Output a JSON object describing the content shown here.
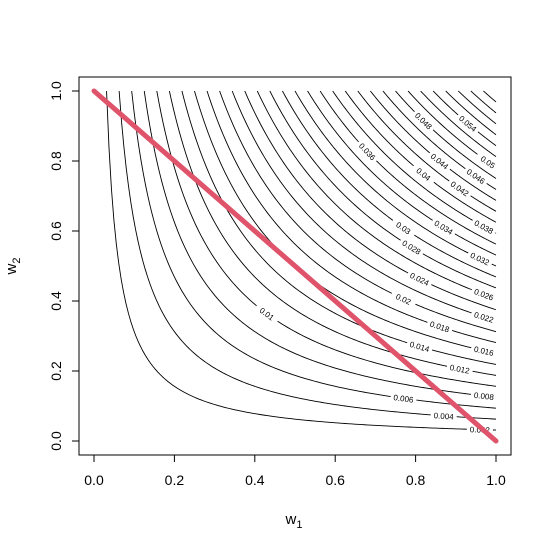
{
  "chart_data": {
    "type": "contour",
    "title": "",
    "xlabel": {
      "base": "w",
      "sub": "1"
    },
    "ylabel": {
      "base": "w",
      "sub": "2"
    },
    "xlim": [
      0,
      1
    ],
    "ylim": [
      0,
      1
    ],
    "x_ticks": [
      "0.0",
      "0.2",
      "0.4",
      "0.6",
      "0.8",
      "1.0"
    ],
    "y_ticks": [
      "0.0",
      "0.2",
      "0.4",
      "0.6",
      "0.8",
      "1.0"
    ],
    "x_tick_values": [
      0,
      0.2,
      0.4,
      0.6,
      0.8,
      1.0
    ],
    "y_tick_values": [
      0,
      0.2,
      0.4,
      0.6,
      0.8,
      1.0
    ],
    "contour_function": "w1 * w2 * 0.064",
    "contour_levels": [
      0.002,
      0.004,
      0.006,
      0.008,
      0.01,
      0.012,
      0.014,
      0.016,
      0.018,
      0.02,
      0.022,
      0.024,
      0.026,
      0.028,
      0.03,
      0.032,
      0.034,
      0.036,
      0.038,
      0.04,
      0.042,
      0.044,
      0.046,
      0.048,
      0.05,
      0.052,
      0.054,
      0.056,
      0.058,
      0.06,
      0.062
    ],
    "contour_labels": [
      {
        "text": "0.002",
        "w1": 0.96,
        "level": 0.002
      },
      {
        "text": "0.004",
        "w1": 0.87,
        "level": 0.004
      },
      {
        "text": "0.006",
        "w1": 0.77,
        "level": 0.006
      },
      {
        "text": "0.008",
        "w1": 0.97,
        "level": 0.008
      },
      {
        "text": "0.01",
        "w1": 0.43,
        "level": 0.01
      },
      {
        "text": "0.012",
        "w1": 0.91,
        "level": 0.012
      },
      {
        "text": "0.014",
        "w1": 0.81,
        "level": 0.014
      },
      {
        "text": "0.016",
        "w1": 0.97,
        "level": 0.016
      },
      {
        "text": "0.018",
        "w1": 0.86,
        "level": 0.018
      },
      {
        "text": "0.02",
        "w1": 0.77,
        "level": 0.02
      },
      {
        "text": "0.022",
        "w1": 0.97,
        "level": 0.022
      },
      {
        "text": "0.024",
        "w1": 0.81,
        "level": 0.024
      },
      {
        "text": "0.026",
        "w1": 0.97,
        "level": 0.026
      },
      {
        "text": "0.028",
        "w1": 0.79,
        "level": 0.028
      },
      {
        "text": "0.03",
        "w1": 0.77,
        "level": 0.03
      },
      {
        "text": "0.032",
        "w1": 0.96,
        "level": 0.032
      },
      {
        "text": "0.034",
        "w1": 0.87,
        "level": 0.034
      },
      {
        "text": "0.036",
        "w1": 0.68,
        "level": 0.036
      },
      {
        "text": "0.038",
        "w1": 0.97,
        "level": 0.038
      },
      {
        "text": "0.04",
        "w1": 0.82,
        "level": 0.04
      },
      {
        "text": "0.042",
        "w1": 0.91,
        "level": 0.042
      },
      {
        "text": "0.044",
        "w1": 0.86,
        "level": 0.044
      },
      {
        "text": "0.046",
        "w1": 0.95,
        "level": 0.046
      },
      {
        "text": "0.048",
        "w1": 0.82,
        "level": 0.048
      },
      {
        "text": "0.05",
        "w1": 0.98,
        "level": 0.05
      },
      {
        "text": "0.054",
        "w1": 0.93,
        "level": 0.054
      }
    ],
    "line": {
      "x": [
        0,
        1
      ],
      "y": [
        1,
        0
      ],
      "color": "#DF536B"
    },
    "grid": false,
    "legend": "none"
  }
}
